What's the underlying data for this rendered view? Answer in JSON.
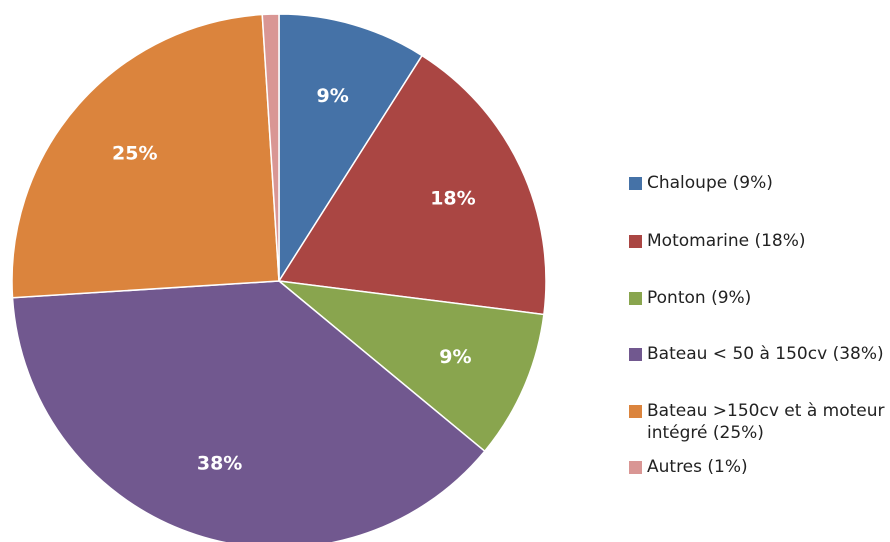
{
  "chart_data": {
    "type": "pie",
    "categories": [
      "Chaloupe (9%)",
      "Motomarine (18%)",
      "Ponton (9%)",
      "Bateau < 50 à 150cv (38%)",
      "Bateau >150cv et à moteur intégré (25%)",
      "Autres (1%)"
    ],
    "values": [
      9,
      18,
      9,
      38,
      25,
      1
    ],
    "value_labels": [
      "9%",
      "18%",
      "9%",
      "38%",
      "25%",
      null
    ],
    "colors": [
      "#4572a7",
      "#aa4643",
      "#89a54e",
      "#71588f",
      "#db843d",
      "#d99694"
    ],
    "legend": "right"
  }
}
